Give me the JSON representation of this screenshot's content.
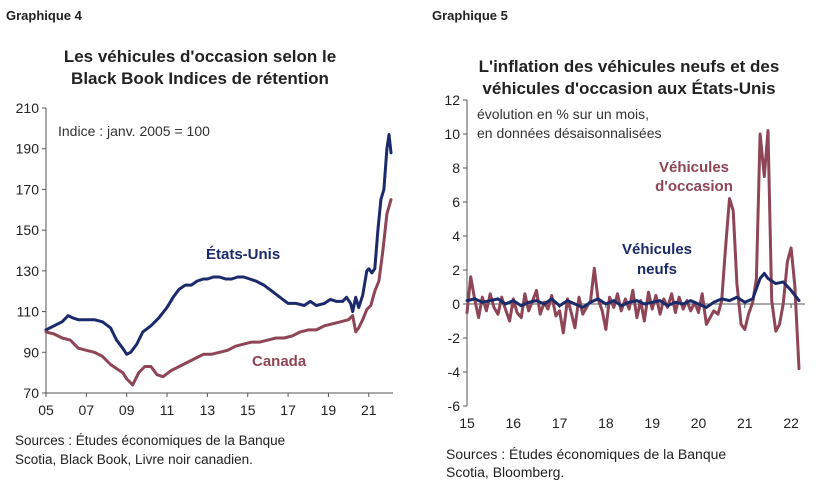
{
  "left": {
    "graph_label": "Graphique 4",
    "title_lines": [
      "Les véhicules d'occasion selon le",
      "Black Book Indices de rétention"
    ],
    "sources_lines": [
      "Sources : Études économiques de la Banque",
      "Scotia,  Black Book, Livre noir canadien."
    ]
  },
  "right": {
    "graph_label": "Graphique 5",
    "title_lines": [
      "L'inflation des véhicules neufs et des",
      "véhicules d'occasion aux États-Unis"
    ],
    "sources_lines": [
      "Sources : Études économiques de la Banque",
      "Scotia, Bloomberg."
    ]
  },
  "chart_data": [
    {
      "type": "line",
      "title": "Les véhicules d'occasion selon le Black Book Indices de rétention",
      "annotation": "Indice : janv. 2005 = 100",
      "xlim": [
        2005,
        2022.2
      ],
      "ylim": [
        70,
        210
      ],
      "x_ticks": [
        2005,
        2007,
        2009,
        2011,
        2013,
        2015,
        2017,
        2019,
        2021
      ],
      "x_tick_labels": [
        "05",
        "07",
        "09",
        "11",
        "13",
        "15",
        "17",
        "19",
        "21"
      ],
      "y_ticks": [
        70,
        90,
        110,
        130,
        150,
        170,
        190,
        210
      ],
      "y_tick_labels": [
        "70",
        "90",
        "110",
        "130",
        "150",
        "170",
        "190",
        "210"
      ],
      "series": [
        {
          "name": "États-Unis",
          "color": "#1b2a6b",
          "x": [
            2005.0,
            2005.4,
            2005.8,
            2006.1,
            2006.3,
            2006.6,
            2007.0,
            2007.4,
            2007.8,
            2008.2,
            2008.5,
            2008.8,
            2009.0,
            2009.2,
            2009.5,
            2009.8,
            2010.2,
            2010.6,
            2011.0,
            2011.3,
            2011.6,
            2011.9,
            2012.2,
            2012.5,
            2012.8,
            2013.0,
            2013.3,
            2013.6,
            2013.9,
            2014.2,
            2014.5,
            2014.8,
            2015.1,
            2015.4,
            2015.8,
            2016.2,
            2016.6,
            2017.0,
            2017.4,
            2017.8,
            2018.1,
            2018.4,
            2018.8,
            2019.1,
            2019.4,
            2019.7,
            2019.9,
            2020.1,
            2020.2,
            2020.35,
            2020.5,
            2020.7,
            2020.9,
            2021.0,
            2021.15,
            2021.3,
            2021.45,
            2021.6,
            2021.75,
            2021.9,
            2022.0,
            2022.1
          ],
          "y": [
            101,
            103,
            105,
            108,
            107,
            106,
            106,
            106,
            105,
            102,
            96,
            92,
            89,
            90,
            94,
            100,
            103,
            107,
            112,
            117,
            121,
            123,
            123,
            125,
            126,
            126,
            127,
            127,
            126,
            126,
            127,
            127,
            126,
            125,
            123,
            120,
            117,
            114,
            114,
            113,
            115,
            113,
            114,
            116,
            115,
            115,
            117,
            114,
            110,
            117,
            112,
            118,
            130,
            131,
            129,
            131,
            150,
            165,
            170,
            190,
            197,
            188
          ]
        },
        {
          "name": "Canada",
          "color": "#8e4556",
          "x": [
            2005.0,
            2005.4,
            2005.8,
            2006.2,
            2006.6,
            2007.0,
            2007.4,
            2007.8,
            2008.2,
            2008.5,
            2008.8,
            2009.0,
            2009.3,
            2009.6,
            2009.9,
            2010.2,
            2010.5,
            2010.8,
            2011.2,
            2011.6,
            2012.0,
            2012.4,
            2012.8,
            2013.2,
            2013.6,
            2014.0,
            2014.4,
            2014.8,
            2015.2,
            2015.6,
            2016.0,
            2016.4,
            2016.8,
            2017.2,
            2017.6,
            2018.0,
            2018.4,
            2018.8,
            2019.2,
            2019.6,
            2020.0,
            2020.2,
            2020.35,
            2020.5,
            2020.7,
            2020.9,
            2021.1,
            2021.3,
            2021.5,
            2021.7,
            2021.9,
            2022.1
          ],
          "y": [
            100,
            99,
            97,
            96,
            92,
            91,
            90,
            88,
            84,
            82,
            80,
            77,
            74,
            80,
            83,
            83,
            79,
            78,
            81,
            83,
            85,
            87,
            89,
            89,
            90,
            91,
            93,
            94,
            95,
            95,
            96,
            97,
            97,
            98,
            100,
            101,
            101,
            103,
            104,
            105,
            106,
            108,
            100,
            102,
            106,
            111,
            113,
            120,
            125,
            140,
            158,
            165
          ]
        }
      ]
    },
    {
      "type": "line",
      "title": "L'inflation des véhicules neufs et des véhicules d'occasion aux États-Unis",
      "annotation": [
        "évolution en % sur un mois,",
        "en données désaisonnalisées"
      ],
      "xlim": [
        2015,
        2022.3
      ],
      "ylim": [
        -6,
        12
      ],
      "x_ticks": [
        2015,
        2016,
        2017,
        2018,
        2019,
        2020,
        2021,
        2022
      ],
      "x_tick_labels": [
        "15",
        "16",
        "17",
        "18",
        "19",
        "20",
        "21",
        "22"
      ],
      "y_ticks": [
        -6,
        -4,
        -2,
        0,
        2,
        4,
        6,
        8,
        10,
        12
      ],
      "y_tick_labels": [
        "-6",
        "-4",
        "-2",
        "0",
        "2",
        "4",
        "6",
        "8",
        "10",
        "12"
      ],
      "series": [
        {
          "name": "Véhicules d'occasion",
          "label_lines": [
            "Véhicules",
            "d'occasion"
          ],
          "color": "#8e4556",
          "x": [
            2015.0,
            2015.08,
            2015.17,
            2015.25,
            2015.33,
            2015.42,
            2015.5,
            2015.58,
            2015.67,
            2015.75,
            2015.83,
            2015.92,
            2016.0,
            2016.08,
            2016.17,
            2016.25,
            2016.33,
            2016.42,
            2016.5,
            2016.58,
            2016.67,
            2016.75,
            2016.83,
            2016.92,
            2017.0,
            2017.08,
            2017.17,
            2017.25,
            2017.33,
            2017.42,
            2017.5,
            2017.58,
            2017.67,
            2017.75,
            2017.83,
            2017.92,
            2018.0,
            2018.08,
            2018.17,
            2018.25,
            2018.33,
            2018.42,
            2018.5,
            2018.58,
            2018.67,
            2018.75,
            2018.83,
            2018.92,
            2019.0,
            2019.08,
            2019.17,
            2019.25,
            2019.33,
            2019.42,
            2019.5,
            2019.58,
            2019.67,
            2019.75,
            2019.83,
            2019.92,
            2020.0,
            2020.08,
            2020.17,
            2020.25,
            2020.33,
            2020.42,
            2020.5,
            2020.58,
            2020.67,
            2020.75,
            2020.83,
            2020.92,
            2021.0,
            2021.08,
            2021.17,
            2021.25,
            2021.33,
            2021.42,
            2021.5,
            2021.58,
            2021.67,
            2021.75,
            2021.83,
            2021.92,
            2022.0,
            2022.08,
            2022.17
          ],
          "y": [
            -0.5,
            1.6,
            0.2,
            -0.8,
            0.4,
            -0.4,
            0.6,
            -0.2,
            -0.6,
            0.4,
            -0.3,
            -1.0,
            0.3,
            -0.5,
            -0.8,
            0.6,
            -0.4,
            0.2,
            0.8,
            -0.6,
            0.1,
            -0.3,
            0.5,
            -0.7,
            -0.4,
            -1.7,
            0.3,
            -0.5,
            -1.4,
            0.4,
            -0.6,
            -0.2,
            0.2,
            2.1,
            0.3,
            -0.4,
            -1.5,
            0.4,
            -0.2,
            0.6,
            -0.4,
            0.3,
            -0.3,
            0.8,
            -0.8,
            0.2,
            -1.0,
            0.7,
            -0.3,
            0.5,
            -0.6,
            0.3,
            -0.2,
            0.6,
            -0.5,
            0.4,
            -0.3,
            0.2,
            -0.4,
            0.1,
            -0.5,
            0.6,
            -1.2,
            -0.8,
            -0.4,
            -0.6,
            0.2,
            3.2,
            6.2,
            5.5,
            1.2,
            -1.2,
            -1.5,
            -0.6,
            0.1,
            1.5,
            10.0,
            7.5,
            10.2,
            0.2,
            -1.6,
            -1.2,
            0.0,
            2.5,
            3.3,
            1.1,
            -3.8
          ]
        },
        {
          "name": "Véhicules neufs",
          "label_lines": [
            "Véhicules",
            "neufs"
          ],
          "color": "#1b2a6b",
          "x": [
            2015.0,
            2015.17,
            2015.33,
            2015.5,
            2015.67,
            2015.83,
            2016.0,
            2016.17,
            2016.33,
            2016.5,
            2016.67,
            2016.83,
            2017.0,
            2017.17,
            2017.33,
            2017.5,
            2017.67,
            2017.83,
            2018.0,
            2018.17,
            2018.33,
            2018.5,
            2018.67,
            2018.83,
            2019.0,
            2019.17,
            2019.33,
            2019.5,
            2019.67,
            2019.83,
            2020.0,
            2020.17,
            2020.33,
            2020.5,
            2020.67,
            2020.83,
            2021.0,
            2021.17,
            2021.33,
            2021.42,
            2021.5,
            2021.67,
            2021.83,
            2022.0,
            2022.17
          ],
          "y": [
            0.2,
            0.3,
            0.1,
            0.2,
            0.3,
            0.0,
            0.2,
            -0.1,
            0.1,
            0.2,
            0.0,
            0.3,
            -0.1,
            0.2,
            0.0,
            -0.2,
            0.1,
            0.3,
            0.0,
            0.2,
            -0.1,
            0.1,
            0.2,
            0.0,
            0.1,
            0.2,
            -0.1,
            0.1,
            0.0,
            0.2,
            0.0,
            -0.2,
            0.1,
            0.3,
            0.2,
            0.4,
            0.1,
            0.3,
            1.5,
            1.8,
            1.5,
            1.2,
            1.3,
            0.8,
            0.2
          ]
        }
      ]
    }
  ]
}
